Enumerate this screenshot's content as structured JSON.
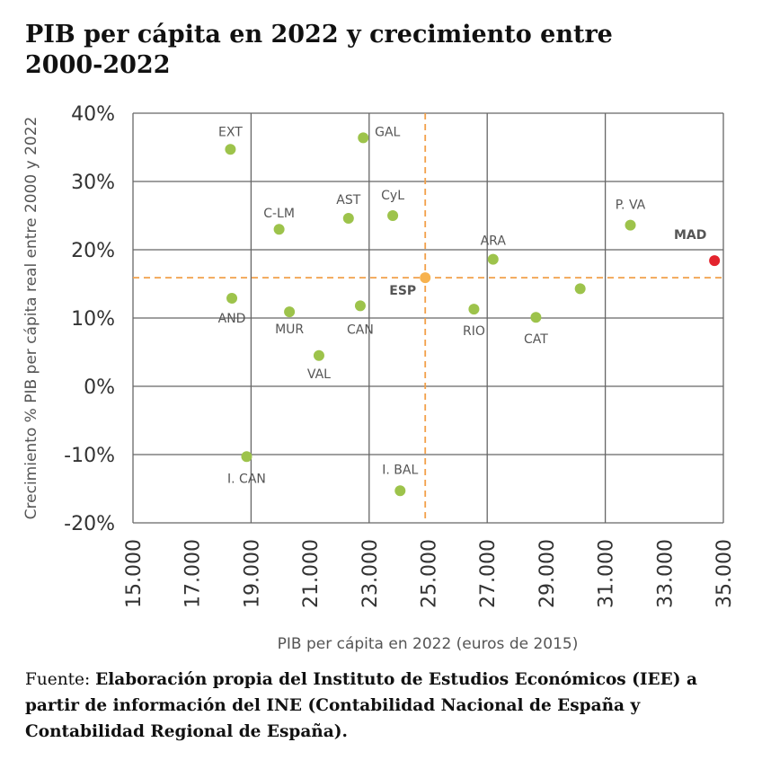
{
  "chart_data": {
    "type": "scatter",
    "title": "PIB per cápita en 2022 y crecimiento entre 2000-2022",
    "xlabel": "PIB per cápita en 2022 (euros de 2015)",
    "ylabel": "Crecimiento % PIB per cápita real entre 2000 y 2022",
    "xlim": [
      15000,
      35000
    ],
    "ylim": [
      -20,
      40
    ],
    "x_ticks": [
      "15.000",
      "17.000",
      "19.000",
      "21.000",
      "23.000",
      "25.000",
      "27.000",
      "29.000",
      "31.000",
      "33.000",
      "35.000"
    ],
    "y_ticks": [
      "40%",
      "30%",
      "20%",
      "10%",
      "0%",
      "-10%",
      "-20%"
    ],
    "grid": true,
    "reference_lines": {
      "x": 24900,
      "y": 15.9
    },
    "colors": {
      "regions": "#9dc34b",
      "spain": "#f7b24e",
      "madrid": "#e3232d",
      "reference": "#f2a04a"
    },
    "points": [
      {
        "label": "EXT",
        "x": 18300,
        "y": 34.7
      },
      {
        "label": "GAL",
        "x": 22800,
        "y": 36.4
      },
      {
        "label": "C-LM",
        "x": 19950,
        "y": 23.0
      },
      {
        "label": "AST",
        "x": 22300,
        "y": 24.6
      },
      {
        "label": "CyL",
        "x": 23800,
        "y": 25.0
      },
      {
        "label": "ARA",
        "x": 27200,
        "y": 18.6
      },
      {
        "label": "P. VA",
        "x": 31850,
        "y": 23.6
      },
      {
        "label": "MAD",
        "x": 34700,
        "y": 18.4
      },
      {
        "label": "ESP",
        "x": 24900,
        "y": 15.9
      },
      {
        "label": "AND",
        "x": 18350,
        "y": 12.9
      },
      {
        "label": "MUR",
        "x": 20300,
        "y": 10.9
      },
      {
        "label": "CAN",
        "x": 22700,
        "y": 11.8
      },
      {
        "label": "RIO",
        "x": 26550,
        "y": 11.3
      },
      {
        "label": "CAT",
        "x": 28650,
        "y": 10.1
      },
      {
        "label": "",
        "x": 30150,
        "y": 14.3
      },
      {
        "label": "VAL",
        "x": 21300,
        "y": 4.5
      },
      {
        "label": "I. CAN",
        "x": 18850,
        "y": -10.3
      },
      {
        "label": "I. BAL",
        "x": 24050,
        "y": -15.3
      }
    ]
  },
  "source": {
    "prefix": "Fuente: ",
    "text": "Elaboración propia del Instituto de Estudios Económicos (IEE) a partir de información del INE (Contabilidad Nacional de España y Contabilidad Regional de España)."
  }
}
